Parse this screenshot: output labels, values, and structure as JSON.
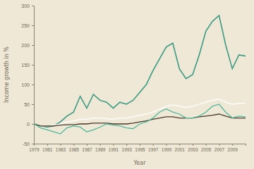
{
  "chart_data": {
    "type": "line",
    "x_label": "Year",
    "y_label": "Income growth in %",
    "x": [
      1979,
      1980,
      1981,
      1982,
      1983,
      1984,
      1985,
      1986,
      1987,
      1988,
      1989,
      1990,
      1991,
      1992,
      1993,
      1994,
      1995,
      1996,
      1997,
      1998,
      1999,
      2000,
      2001,
      2002,
      2003,
      2004,
      2005,
      2006,
      2007,
      2008,
      2009,
      2010,
      2011
    ],
    "series": [
      {
        "color": "#3a9a82",
        "values": [
          0,
          -5,
          -8,
          -5,
          5,
          20,
          30,
          70,
          40,
          75,
          60,
          55,
          40,
          55,
          50,
          60,
          80,
          100,
          135,
          165,
          195,
          205,
          140,
          115,
          125,
          175,
          235,
          260,
          275,
          200,
          140,
          175,
          172
        ]
      },
      {
        "color": "#ffffff",
        "values": [
          0,
          -5,
          -5,
          -3,
          0,
          5,
          8,
          12,
          12,
          15,
          15,
          13,
          12,
          15,
          15,
          18,
          22,
          25,
          30,
          38,
          45,
          48,
          45,
          42,
          45,
          50,
          55,
          60,
          63,
          55,
          50,
          52,
          53
        ]
      },
      {
        "color": "#4a3728",
        "values": [
          0,
          -5,
          -5,
          -5,
          -3,
          -2,
          -2,
          0,
          0,
          2,
          2,
          2,
          0,
          0,
          0,
          2,
          5,
          8,
          12,
          15,
          18,
          18,
          15,
          15,
          15,
          18,
          20,
          22,
          25,
          20,
          15,
          15,
          15
        ]
      },
      {
        "color": "#4fb89a",
        "values": [
          0,
          -10,
          -15,
          -20,
          -25,
          -10,
          -5,
          -8,
          -20,
          -15,
          -8,
          0,
          -3,
          -5,
          -10,
          -12,
          0,
          5,
          15,
          30,
          38,
          30,
          25,
          15,
          15,
          20,
          30,
          45,
          50,
          30,
          15,
          20,
          18
        ]
      }
    ],
    "xlim": [
      1979,
      2011
    ],
    "xticks": [
      1979,
      1981,
      1983,
      1985,
      1987,
      1989,
      1991,
      1993,
      1995,
      1997,
      1999,
      2001,
      2003,
      2005,
      2007,
      2009
    ],
    "ylim": [
      -50,
      300
    ],
    "yticks": [
      -50,
      0,
      50,
      100,
      150,
      200,
      250,
      300
    ],
    "grid": false
  }
}
